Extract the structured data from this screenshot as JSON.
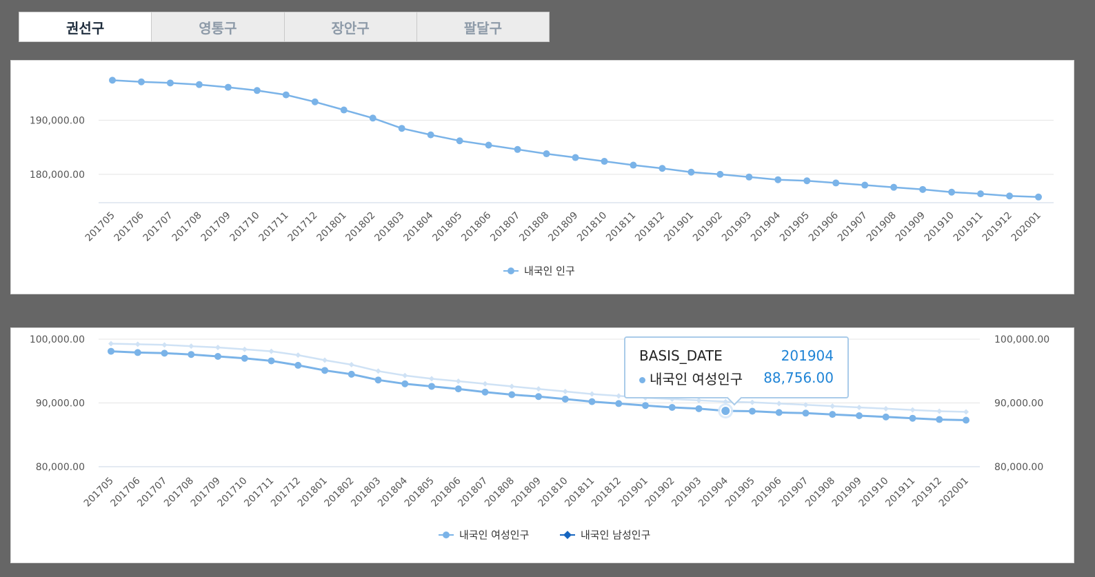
{
  "tabs": [
    {
      "label": "권선구",
      "active": true
    },
    {
      "label": "영통구",
      "active": false
    },
    {
      "label": "장안구",
      "active": false
    },
    {
      "label": "팔달구",
      "active": false
    }
  ],
  "colors": {
    "series_primary": "#7ab3e8",
    "series_light": "#cfe2f5",
    "accent": "#1f84d6",
    "grid": "#e4e4e4"
  },
  "chart_data": [
    {
      "type": "line",
      "categories": [
        "201705",
        "201706",
        "201707",
        "201708",
        "201709",
        "201710",
        "201711",
        "201712",
        "201801",
        "201802",
        "201803",
        "201804",
        "201805",
        "201806",
        "201807",
        "201808",
        "201809",
        "201810",
        "201811",
        "201812",
        "201901",
        "201902",
        "201903",
        "201904",
        "201905",
        "201906",
        "201907",
        "201908",
        "201909",
        "201910",
        "201911",
        "201912",
        "202001"
      ],
      "series": [
        {
          "name": "내국인 인구",
          "values": [
            197400,
            197100,
            196900,
            196600,
            196100,
            195500,
            194700,
            193400,
            191900,
            190400,
            188500,
            187300,
            186200,
            185400,
            184600,
            183800,
            183100,
            182400,
            181700,
            181100,
            180400,
            180000,
            179500,
            179000,
            178800,
            178400,
            178000,
            177600,
            177200,
            176700,
            176400,
            176000,
            175800
          ]
        }
      ],
      "yticks": [
        "190,000.00",
        "180,000.00"
      ],
      "ylim": [
        174500,
        200000
      ],
      "legend": "bottom-center",
      "grid": true
    },
    {
      "type": "line",
      "categories": [
        "201705",
        "201706",
        "201707",
        "201708",
        "201709",
        "201710",
        "201711",
        "201712",
        "201801",
        "201802",
        "201803",
        "201804",
        "201805",
        "201806",
        "201807",
        "201808",
        "201809",
        "201810",
        "201811",
        "201812",
        "201901",
        "201902",
        "201903",
        "201904",
        "201905",
        "201906",
        "201907",
        "201908",
        "201909",
        "201910",
        "201911",
        "201912",
        "202001"
      ],
      "series": [
        {
          "name": "내국인 여성인구",
          "values": [
            98100,
            97900,
            97800,
            97600,
            97300,
            97000,
            96600,
            95900,
            95100,
            94500,
            93600,
            93000,
            92600,
            92200,
            91700,
            91300,
            91000,
            90600,
            90200,
            89900,
            89600,
            89300,
            89100,
            88756,
            88700,
            88500,
            88400,
            88200,
            88000,
            87800,
            87600,
            87400,
            87300
          ]
        },
        {
          "name": "내국인 남성인구",
          "values": [
            99300,
            99200,
            99100,
            98900,
            98700,
            98400,
            98100,
            97500,
            96700,
            96000,
            95000,
            94300,
            93800,
            93400,
            93000,
            92600,
            92200,
            91800,
            91400,
            91100,
            90800,
            90600,
            90400,
            90200,
            90100,
            89900,
            89700,
            89500,
            89300,
            89100,
            88900,
            88700,
            88600
          ]
        }
      ],
      "yticks": [
        "100,000.00",
        "90,000.00",
        "80,000.00"
      ],
      "ylim": [
        80000,
        100000
      ],
      "legend": "bottom-center",
      "grid": true
    }
  ],
  "tooltip": {
    "key_label": "BASIS_DATE",
    "key_value": "201904",
    "series_label": "내국인 여성인구",
    "series_value": "88,756.00"
  }
}
